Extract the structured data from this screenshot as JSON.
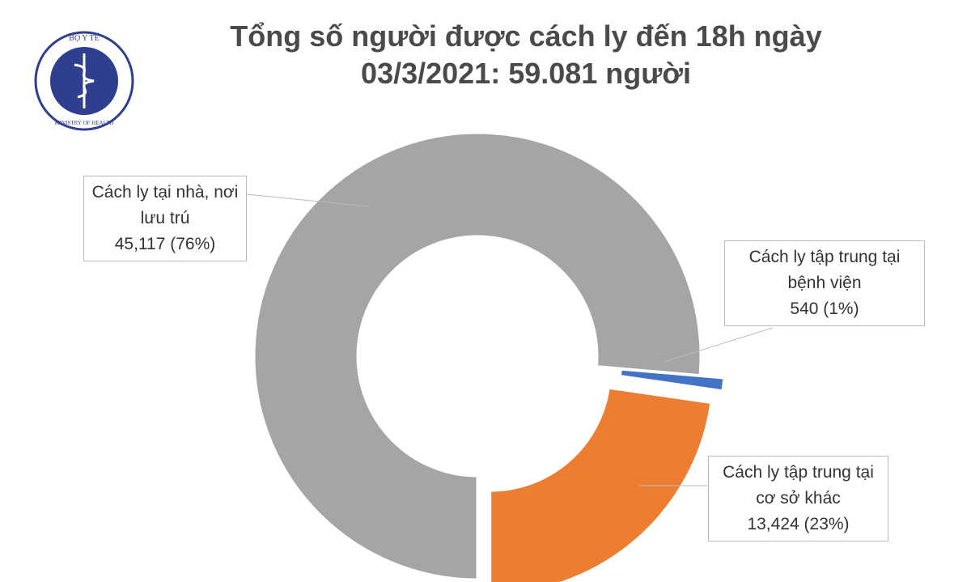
{
  "logo": {
    "top": "BỘ Y TẾ",
    "bottom": "MINISTRY OF HEALTH"
  },
  "chart_data": {
    "type": "donut",
    "title": "Tổng số người được cách ly đến 18h ngày 03/3/2021: 59.081 người",
    "categories": [
      "Cách ly tại nhà, nơi lưu trú",
      "Cách ly tập trung tại bệnh viện",
      "Cách ly tập trung tại cơ sở khác"
    ],
    "values": [
      45117,
      540,
      13424
    ],
    "value_labels": [
      "45,117 (76%)",
      "540 (1%)",
      "13,424 (23%)"
    ],
    "colors": [
      "#a5a5a5",
      "#4472c4",
      "#ed7d31"
    ]
  }
}
